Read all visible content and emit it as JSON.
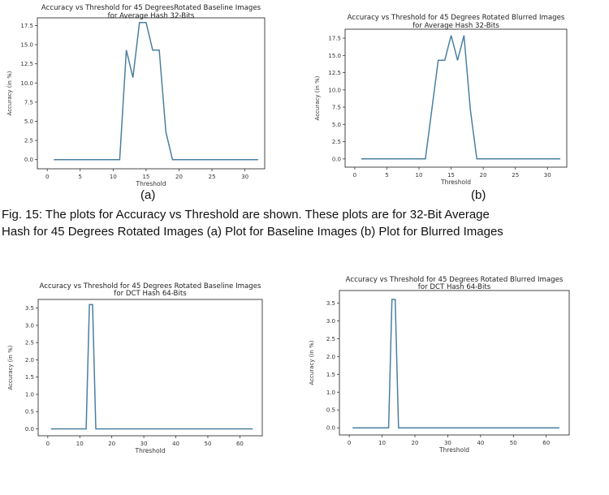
{
  "figure": {
    "caption_line1": "Fig. 15: The plots for Accuracy vs Threshold are shown. These plots are for 32-Bit Average",
    "caption_line2": "Hash for 45 Degrees Rotated Images  (a) Plot for Baseline Images (b) Plot for Blurred Images",
    "label_a": "(a)",
    "label_b": "(b)"
  },
  "chart_data": [
    {
      "type": "line",
      "title": "Accuracy vs Threshold for 45 DegreesRotated Baseline Images",
      "subtitle": "for Average Hash 32-Bits",
      "xlabel": "Threshold",
      "ylabel": "Accuracy (in %)",
      "xlim": [
        -1.5,
        33
      ],
      "ylim": [
        -1.2,
        18.5
      ],
      "xticks": [
        0,
        5,
        10,
        15,
        20,
        25,
        30
      ],
      "xtick_labels": [
        "0",
        "5",
        "10",
        "15",
        "20",
        "25",
        "30"
      ],
      "yticks": [
        0,
        2.5,
        5,
        7.5,
        10,
        12.5,
        15,
        17.5
      ],
      "ytick_labels": [
        "0.0",
        "2.5",
        "5.0",
        "7.5",
        "10.0",
        "12.5",
        "15.0",
        "17.5"
      ],
      "color": "#4a7fa0",
      "x": [
        1,
        11,
        12,
        13,
        14,
        15,
        16,
        17,
        18,
        19,
        32
      ],
      "y": [
        0,
        0,
        14.3,
        10.7,
        17.9,
        17.9,
        14.3,
        14.3,
        3.6,
        0,
        0
      ]
    },
    {
      "type": "line",
      "title": "Accuracy vs Threshold for 45 Degrees Rotated Blurred Images",
      "subtitle": "for Average Hash 32-Bits",
      "xlabel": "Threshold",
      "ylabel": "Accuracy (in %)",
      "xlim": [
        -1.5,
        33
      ],
      "ylim": [
        -1.2,
        18.8
      ],
      "xticks": [
        0,
        5,
        10,
        15,
        20,
        25,
        30
      ],
      "xtick_labels": [
        "0",
        "5",
        "10",
        "15",
        "20",
        "25",
        "30"
      ],
      "yticks": [
        0,
        2.5,
        5,
        7.5,
        10,
        12.5,
        15,
        17.5
      ],
      "ytick_labels": [
        "0.0",
        "2.5",
        "5.0",
        "7.5",
        "10.0",
        "12.5",
        "15.0",
        "17.5"
      ],
      "color": "#4a7fa0",
      "x": [
        1,
        11,
        13,
        14,
        15,
        16,
        17,
        18,
        19,
        32
      ],
      "y": [
        0,
        0,
        14.3,
        14.3,
        17.9,
        14.3,
        17.9,
        7.1,
        0,
        0
      ]
    },
    {
      "type": "line",
      "title": "Accuracy vs Threshold for 45 Degrees Rotated Baseline Images",
      "subtitle": "for DCT Hash 64-Bits",
      "xlabel": "Threshold",
      "ylabel": "Accuracy (in %)",
      "xlim": [
        -3,
        67
      ],
      "ylim": [
        -0.2,
        3.75
      ],
      "xticks": [
        0,
        10,
        20,
        30,
        40,
        50,
        60
      ],
      "xtick_labels": [
        "0",
        "10",
        "20",
        "30",
        "40",
        "50",
        "60"
      ],
      "yticks": [
        0,
        0.5,
        1,
        1.5,
        2,
        2.5,
        3,
        3.5
      ],
      "ytick_labels": [
        "0.0",
        "0.5",
        "1.0",
        "1.5",
        "2.0",
        "2.5",
        "3.0",
        "3.5"
      ],
      "color": "#4a7fa0",
      "x": [
        1,
        12,
        13,
        14,
        15,
        64
      ],
      "y": [
        0,
        0,
        3.6,
        3.6,
        0,
        0
      ]
    },
    {
      "type": "line",
      "title": "Accuracy vs Threshold for 45 Degrees Rotated Blurred Images",
      "subtitle": "for DCT Hash 64-Bits",
      "xlabel": "Threshold",
      "ylabel": "Accuracy (in %)",
      "xlim": [
        -3,
        67
      ],
      "ylim": [
        -0.2,
        3.85
      ],
      "xticks": [
        0,
        10,
        20,
        30,
        40,
        50,
        60
      ],
      "xtick_labels": [
        "0",
        "10",
        "20",
        "30",
        "40",
        "50",
        "60"
      ],
      "yticks": [
        0,
        0.5,
        1,
        1.5,
        2,
        2.5,
        3,
        3.5
      ],
      "ytick_labels": [
        "0.0",
        "0.5",
        "1.0",
        "1.5",
        "2.0",
        "2.5",
        "3.0",
        "3.5"
      ],
      "color": "#4a7fa0",
      "x": [
        1,
        12,
        13,
        14,
        15,
        64
      ],
      "y": [
        0,
        0,
        3.6,
        3.6,
        0,
        0
      ]
    }
  ]
}
